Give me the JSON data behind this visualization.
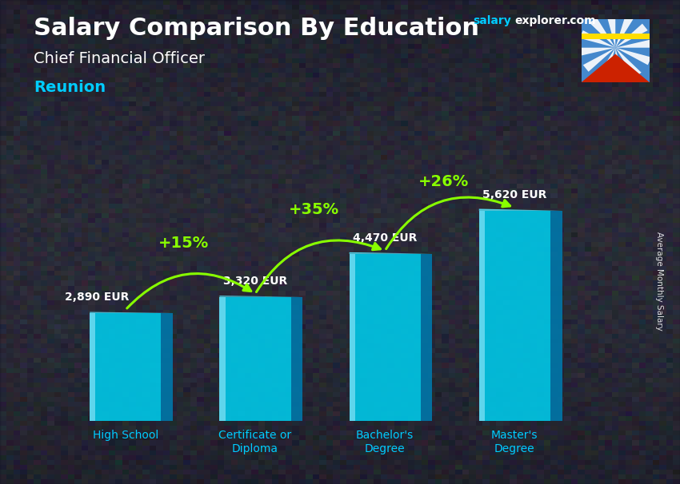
{
  "title_main": "Salary Comparison By Education",
  "subtitle": "Chief Financial Officer",
  "location": "Reunion",
  "ylabel": "Average Monthly Salary",
  "categories": [
    "High School",
    "Certificate or\nDiploma",
    "Bachelor's\nDegree",
    "Master's\nDegree"
  ],
  "values": [
    2890,
    3320,
    4470,
    5620
  ],
  "value_labels": [
    "2,890 EUR",
    "3,320 EUR",
    "4,470 EUR",
    "5,620 EUR"
  ],
  "pct_labels": [
    "+15%",
    "+35%",
    "+26%"
  ],
  "bar_front_color": "#00c8e8",
  "bar_side_color": "#0077aa",
  "bar_top_color": "#55ddf5",
  "bg_photo_color": "#4a4a5a",
  "bg_overlay_color": "#000000",
  "bg_overlay_alpha": 0.45,
  "title_color": "#ffffff",
  "subtitle_color": "#ffffff",
  "location_color": "#00ccff",
  "value_label_color": "#ffffff",
  "pct_color": "#88ff00",
  "arrow_color": "#88ff00",
  "watermark_salary_color": "#00ccff",
  "watermark_explorer_color": "#ffffff",
  "watermark_com_color": "#ffffff",
  "ylim": [
    0,
    7500
  ],
  "fig_width": 8.5,
  "fig_height": 6.06,
  "bar_width": 0.55,
  "side_depth": 0.09
}
